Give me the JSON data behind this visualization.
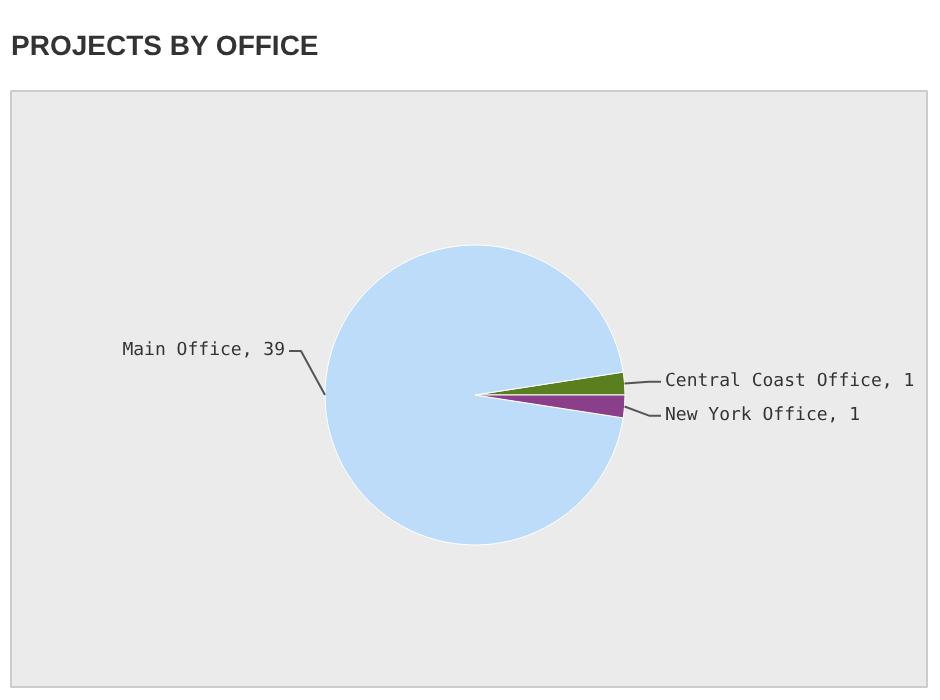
{
  "chart_data": {
    "type": "pie",
    "title": "PROJECTS BY OFFICE",
    "categories": [
      "Central Coast Office",
      "Main Office",
      "New York Office"
    ],
    "values": [
      1,
      39,
      1
    ],
    "colors": [
      "#5a7f1e",
      "#bcdcf9",
      "#8a3f8a"
    ],
    "value_labels": [
      ", 1",
      ", 39",
      ", 1"
    ]
  }
}
